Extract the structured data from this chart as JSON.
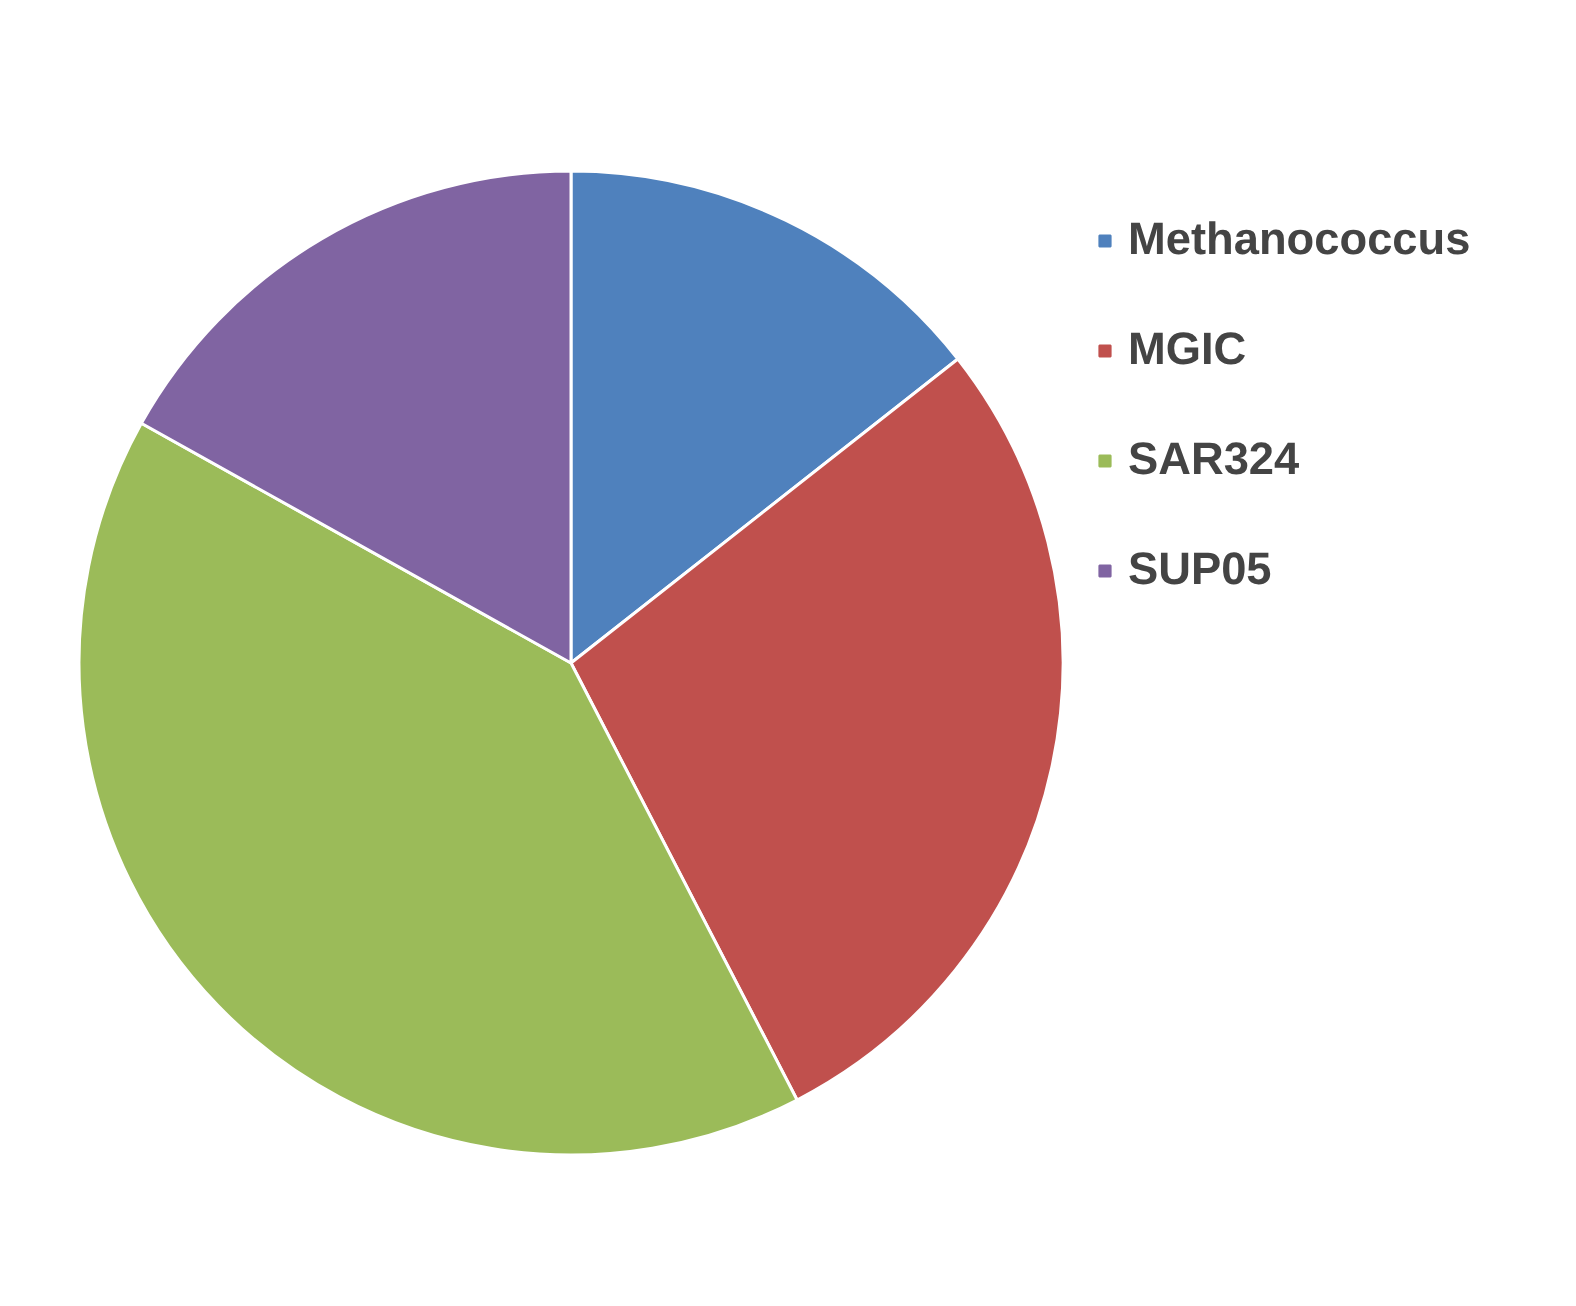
{
  "chart_data": {
    "type": "pie",
    "categories": [
      "Methanococcus",
      "MGIC",
      "SAR324",
      "SUP05"
    ],
    "values": [
      14.4,
      28.0,
      40.7,
      16.9
    ],
    "colors": [
      "#4f81bd",
      "#c0504d",
      "#9bbb59",
      "#8064a2"
    ],
    "legend": "right"
  }
}
